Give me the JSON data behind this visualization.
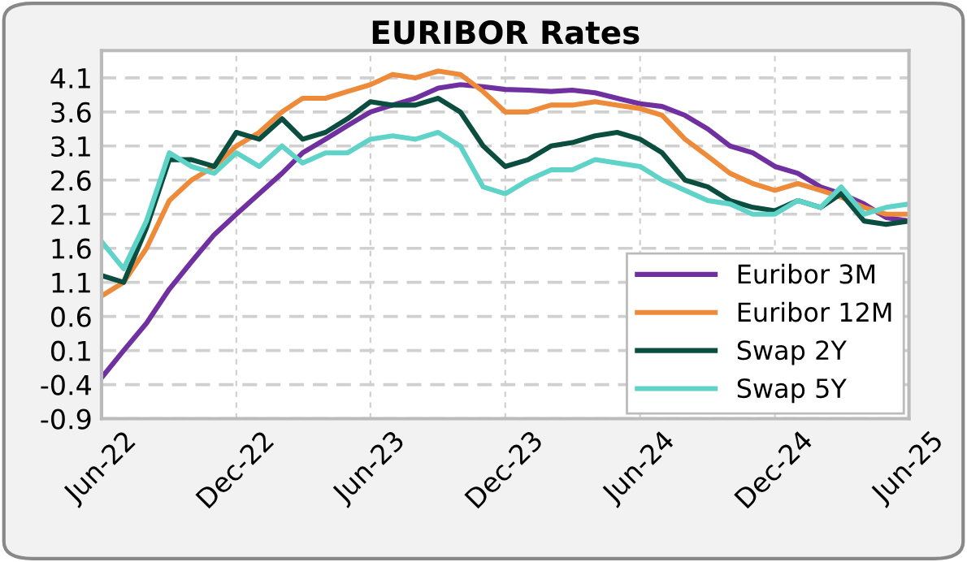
{
  "chart_data": {
    "type": "line",
    "title": "EURIBOR Rates",
    "x": [
      "2022-06",
      "2022-07",
      "2022-08",
      "2022-09",
      "2022-10",
      "2022-11",
      "2022-12",
      "2023-01",
      "2023-02",
      "2023-03",
      "2023-04",
      "2023-05",
      "2023-06",
      "2023-07",
      "2023-08",
      "2023-09",
      "2023-10",
      "2023-11",
      "2023-12",
      "2024-01",
      "2024-02",
      "2024-03",
      "2024-04",
      "2024-05",
      "2024-06",
      "2024-07",
      "2024-08",
      "2024-09",
      "2024-10",
      "2024-11",
      "2024-12",
      "2025-01",
      "2025-02",
      "2025-03",
      "2025-04",
      "2025-05",
      "2025-06"
    ],
    "series": [
      {
        "name": "Euribor 3M",
        "color": "#7030a0",
        "values": [
          -0.3,
          0.1,
          0.5,
          1.0,
          1.4,
          1.8,
          2.1,
          2.4,
          2.7,
          3.0,
          3.2,
          3.4,
          3.6,
          3.7,
          3.8,
          3.95,
          4.0,
          3.97,
          3.93,
          3.92,
          3.9,
          3.92,
          3.88,
          3.8,
          3.72,
          3.68,
          3.55,
          3.35,
          3.1,
          3.0,
          2.8,
          2.7,
          2.5,
          2.4,
          2.25,
          2.05,
          2.0
        ]
      },
      {
        "name": "Euribor 12M",
        "color": "#ed8b3a",
        "values": [
          0.9,
          1.1,
          1.6,
          2.3,
          2.6,
          2.8,
          3.1,
          3.3,
          3.6,
          3.8,
          3.8,
          3.9,
          4.0,
          4.15,
          4.1,
          4.2,
          4.15,
          3.9,
          3.6,
          3.6,
          3.7,
          3.7,
          3.75,
          3.7,
          3.65,
          3.55,
          3.2,
          2.95,
          2.7,
          2.55,
          2.45,
          2.55,
          2.45,
          2.35,
          2.2,
          2.1,
          2.1
        ]
      },
      {
        "name": "Swap 2Y",
        "color": "#0b4d3f",
        "values": [
          1.2,
          1.1,
          1.9,
          2.9,
          2.9,
          2.8,
          3.3,
          3.2,
          3.5,
          3.2,
          3.3,
          3.5,
          3.75,
          3.7,
          3.7,
          3.8,
          3.6,
          3.1,
          2.8,
          2.9,
          3.1,
          3.15,
          3.25,
          3.3,
          3.2,
          3.0,
          2.6,
          2.5,
          2.3,
          2.2,
          2.15,
          2.3,
          2.2,
          2.4,
          2.0,
          1.95,
          2.0
        ]
      },
      {
        "name": "Swap 5Y",
        "color": "#5fd3c8",
        "values": [
          1.7,
          1.3,
          2.0,
          3.0,
          2.8,
          2.7,
          3.0,
          2.8,
          3.1,
          2.85,
          3.0,
          3.0,
          3.2,
          3.25,
          3.2,
          3.3,
          3.1,
          2.5,
          2.4,
          2.6,
          2.75,
          2.75,
          2.9,
          2.85,
          2.8,
          2.6,
          2.45,
          2.3,
          2.25,
          2.1,
          2.1,
          2.3,
          2.2,
          2.5,
          2.1,
          2.2,
          2.25
        ]
      }
    ],
    "xlim": [
      "2022-06",
      "2025-06"
    ],
    "xticks": [
      {
        "value": "2022-06",
        "label": "Jun-22"
      },
      {
        "value": "2022-12",
        "label": "Dec-22"
      },
      {
        "value": "2023-06",
        "label": "Jun-23"
      },
      {
        "value": "2023-12",
        "label": "Dec-23"
      },
      {
        "value": "2024-06",
        "label": "Jun-24"
      },
      {
        "value": "2024-12",
        "label": "Dec-24"
      },
      {
        "value": "2025-06",
        "label": "Jun-25"
      }
    ],
    "ylim": [
      -0.9,
      4.5
    ],
    "yticks": [
      -0.9,
      -0.4,
      0.1,
      0.6,
      1.1,
      1.6,
      2.1,
      2.6,
      3.1,
      3.6,
      4.1
    ],
    "grid": true,
    "legend": "bottom right",
    "line_style": "solid",
    "marker": "none"
  }
}
